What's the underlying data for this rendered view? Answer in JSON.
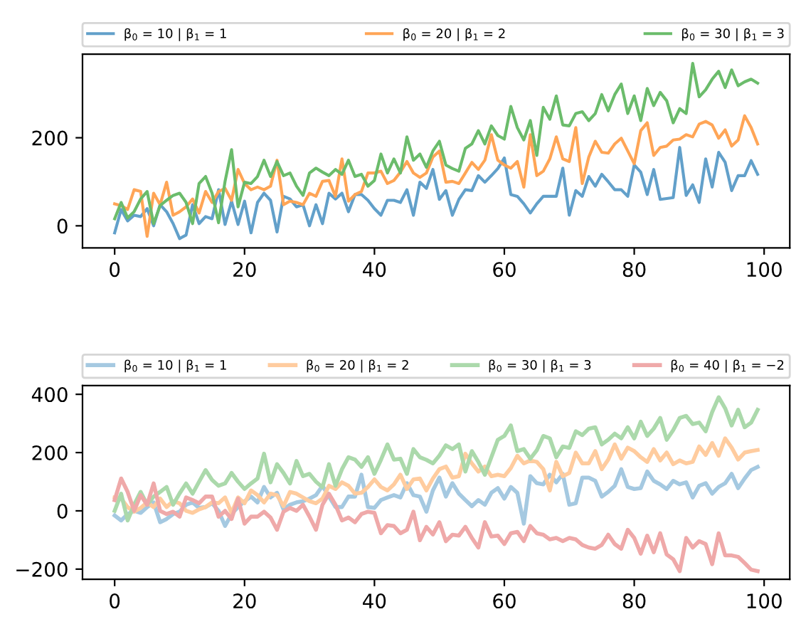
{
  "chart_data": [
    {
      "type": "line",
      "legend": "top",
      "xlim": [
        -4.95,
        103.95
      ],
      "xticks": [
        0,
        20,
        40,
        60,
        80,
        100
      ],
      "ylim": [
        -50,
        390
      ],
      "yticks": [
        0,
        200
      ],
      "grid": false,
      "x": [
        0,
        1,
        2,
        3,
        4,
        5,
        6,
        7,
        8,
        9,
        10,
        11,
        12,
        13,
        14,
        15,
        16,
        17,
        18,
        19,
        20,
        21,
        22,
        23,
        24,
        25,
        26,
        27,
        28,
        29,
        30,
        31,
        32,
        33,
        34,
        35,
        36,
        37,
        38,
        39,
        40,
        41,
        42,
        43,
        44,
        45,
        46,
        47,
        48,
        49,
        50,
        51,
        52,
        53,
        54,
        55,
        56,
        57,
        58,
        59,
        60,
        61,
        62,
        63,
        64,
        65,
        66,
        67,
        68,
        69,
        70,
        71,
        72,
        73,
        74,
        75,
        76,
        77,
        78,
        79,
        80,
        81,
        82,
        83,
        84,
        85,
        86,
        87,
        88,
        89,
        90,
        91,
        92,
        93,
        94,
        95,
        96,
        97,
        98,
        99
      ],
      "series": [
        {
          "name": "β$_{0}$ = 10 | β$_{1}$ = 1",
          "color": "#62a0ca",
          "values": [
            -16,
            37,
            11,
            24,
            21,
            39,
            0,
            48,
            32,
            5,
            -29,
            -21,
            48,
            5,
            21,
            16,
            82,
            3,
            56,
            3,
            56,
            -16,
            53,
            74,
            58,
            -14,
            67,
            61,
            43,
            48,
            0,
            48,
            5,
            74,
            61,
            74,
            32,
            71,
            71,
            58,
            39,
            24,
            58,
            58,
            53,
            82,
            24,
            99,
            85,
            128,
            60,
            80,
            24,
            60,
            82,
            80,
            114,
            99,
            114,
            130,
            154,
            71,
            67,
            50,
            29,
            50,
            67,
            67,
            67,
            131,
            24,
            80,
            67,
            112,
            90,
            117,
            100,
            82,
            82,
            67,
            138,
            122,
            71,
            128,
            60,
            62,
            64,
            178,
            69,
            93,
            53,
            152,
            88,
            167,
            144,
            80,
            114,
            114,
            148,
            117
          ]
        },
        {
          "name": "β$_{0}$ = 20 | β$_{1}$ = 2",
          "color": "#ffa556",
          "values": [
            50,
            46,
            37,
            82,
            78,
            -24,
            74,
            48,
            99,
            24,
            32,
            43,
            61,
            29,
            78,
            53,
            78,
            85,
            58,
            128,
            96,
            82,
            88,
            82,
            90,
            149,
            48,
            56,
            53,
            48,
            74,
            67,
            101,
            103,
            67,
            152,
            56,
            71,
            78,
            120,
            120,
            124,
            96,
            103,
            122,
            146,
            120,
            110,
            120,
            156,
            170,
            99,
            101,
            96,
            120,
            144,
            128,
            149,
            207,
            149,
            138,
            131,
            146,
            88,
            207,
            114,
            124,
            152,
            202,
            152,
            146,
            223,
            96,
            156,
            192,
            167,
            165,
            186,
            199,
            170,
            141,
            216,
            234,
            160,
            178,
            181,
            195,
            197,
            207,
            202,
            231,
            237,
            229,
            199,
            218,
            181,
            195,
            250,
            223,
            186
          ]
        },
        {
          "name": "β$_{0}$ = 30 | β$_{1}$ = 3",
          "color": "#6bbc6b",
          "values": [
            16,
            53,
            18,
            32,
            61,
            78,
            5,
            46,
            58,
            69,
            74,
            53,
            5,
            96,
            112,
            74,
            7,
            101,
            173,
            43,
            99,
            96,
            112,
            149,
            112,
            146,
            114,
            120,
            90,
            69,
            120,
            131,
            122,
            114,
            128,
            117,
            149,
            112,
            117,
            90,
            103,
            163,
            120,
            152,
            120,
            202,
            149,
            163,
            133,
            170,
            192,
            138,
            130,
            124,
            176,
            186,
            216,
            186,
            227,
            205,
            197,
            271,
            223,
            195,
            239,
            160,
            269,
            242,
            295,
            229,
            227,
            255,
            259,
            239,
            255,
            298,
            261,
            298,
            322,
            255,
            295,
            239,
            312,
            273,
            303,
            284,
            234,
            266,
            255,
            369,
            293,
            309,
            333,
            351,
            314,
            354,
            318,
            327,
            333,
            324
          ]
        }
      ]
    },
    {
      "type": "line",
      "legend": "top",
      "xlim": [
        -4.95,
        103.95
      ],
      "xticks": [
        0,
        20,
        40,
        60,
        80,
        100
      ],
      "ylim": [
        -235,
        430
      ],
      "yticks": [
        {
          "value": -200,
          "label": "−200"
        },
        0,
        200,
        400
      ],
      "grid": false,
      "x": [
        0,
        1,
        2,
        3,
        4,
        5,
        6,
        7,
        8,
        9,
        10,
        11,
        12,
        13,
        14,
        15,
        16,
        17,
        18,
        19,
        20,
        21,
        22,
        23,
        24,
        25,
        26,
        27,
        28,
        29,
        30,
        31,
        32,
        33,
        34,
        35,
        36,
        37,
        38,
        39,
        40,
        41,
        42,
        43,
        44,
        45,
        46,
        47,
        48,
        49,
        50,
        51,
        52,
        53,
        54,
        55,
        56,
        57,
        58,
        59,
        60,
        61,
        62,
        63,
        64,
        65,
        66,
        67,
        68,
        69,
        70,
        71,
        72,
        73,
        74,
        75,
        76,
        77,
        78,
        79,
        80,
        81,
        82,
        83,
        84,
        85,
        86,
        87,
        88,
        89,
        90,
        91,
        92,
        93,
        94,
        95,
        96,
        97,
        98,
        99
      ],
      "series": [
        {
          "name": "β$_{0}$ = 10 | β$_{1}$ = 1",
          "color": "#a5c9e1",
          "values": [
            -16,
            -33,
            -11,
            0,
            -7,
            13,
            29,
            -39,
            -28,
            -11,
            -3,
            21,
            29,
            10,
            13,
            26,
            0,
            -52,
            -11,
            13,
            33,
            49,
            29,
            82,
            46,
            62,
            5,
            21,
            29,
            33,
            42,
            54,
            86,
            49,
            13,
            13,
            49,
            49,
            124,
            13,
            10,
            37,
            46,
            54,
            46,
            95,
            54,
            49,
            -3,
            70,
            114,
            49,
            95,
            59,
            37,
            16,
            37,
            21,
            62,
            78,
            42,
            82,
            62,
            -44,
            119,
            95,
            91,
            124,
            98,
            127,
            21,
            26,
            114,
            114,
            103,
            49,
            65,
            86,
            143,
            82,
            75,
            78,
            135,
            103,
            91,
            75,
            103,
            91,
            98,
            46,
            86,
            95,
            59,
            82,
            95,
            127,
            78,
            111,
            140,
            151
          ]
        },
        {
          "name": "β$_{0}$ = 20 | β$_{1}$ = 2",
          "color": "#ffcc9f",
          "values": [
            46,
            42,
            13,
            -3,
            10,
            29,
            13,
            42,
            13,
            33,
            26,
            0,
            -7,
            5,
            13,
            29,
            26,
            46,
            -7,
            46,
            26,
            70,
            54,
            29,
            59,
            54,
            16,
            65,
            59,
            46,
            33,
            26,
            42,
            86,
            75,
            98,
            86,
            59,
            62,
            82,
            108,
            82,
            70,
            91,
            124,
            75,
            108,
            111,
            70,
            111,
            143,
            152,
            114,
            119,
            196,
            163,
            135,
            152,
            119,
            124,
            119,
            147,
            189,
            163,
            173,
            168,
            143,
            70,
            168,
            119,
            130,
            200,
            163,
            163,
            205,
            143,
            176,
            228,
            179,
            217,
            205,
            184,
            168,
            212,
            173,
            200,
            160,
            173,
            163,
            168,
            221,
            192,
            233,
            189,
            249,
            217,
            176,
            200,
            205,
            209
          ]
        },
        {
          "name": "β$_{0}$ = 30 | β$_{1}$ = 3",
          "color": "#abd9ab",
          "values": [
            0,
            59,
            -33,
            21,
            65,
            21,
            49,
            65,
            82,
            21,
            60,
            94,
            59,
            100,
            140,
            106,
            86,
            94,
            130,
            100,
            75,
            94,
            111,
            196,
            98,
            160,
            130,
            94,
            171,
            119,
            127,
            100,
            81,
            160,
            86,
            143,
            184,
            176,
            151,
            184,
            127,
            175,
            228,
            176,
            179,
            127,
            212,
            184,
            175,
            163,
            190,
            225,
            212,
            228,
            135,
            205,
            168,
            124,
            184,
            244,
            257,
            293,
            205,
            212,
            179,
            208,
            257,
            249,
            184,
            221,
            216,
            273,
            260,
            282,
            287,
            228,
            244,
            265,
            249,
            287,
            249,
            306,
            257,
            282,
            319,
            244,
            277,
            319,
            326,
            298,
            303,
            273,
            339,
            390,
            352,
            293,
            347,
            287,
            303,
            347
          ]
        },
        {
          "name": "β$_{0}$ = 40 | β$_{1}$ = −2",
          "color": "#efa9a9",
          "values": [
            37,
            111,
            65,
            0,
            54,
            21,
            94,
            0,
            -11,
            -3,
            -20,
            46,
            37,
            26,
            49,
            49,
            -20,
            0,
            -28,
            42,
            -44,
            -20,
            -20,
            -3,
            -23,
            -65,
            -3,
            10,
            0,
            21,
            -20,
            -65,
            21,
            59,
            21,
            -33,
            -23,
            -39,
            -11,
            -3,
            -7,
            -77,
            -49,
            -52,
            -77,
            -65,
            -3,
            -101,
            -55,
            -81,
            -39,
            -104,
            -82,
            -85,
            -55,
            -93,
            -126,
            -39,
            -88,
            -85,
            -114,
            -77,
            -72,
            -104,
            -52,
            -77,
            -82,
            -98,
            -93,
            -104,
            -93,
            -98,
            -117,
            -126,
            -130,
            -117,
            -82,
            -114,
            -130,
            -65,
            -93,
            -147,
            -85,
            -142,
            -77,
            -150,
            -166,
            -207,
            -93,
            -126,
            -104,
            -114,
            -183,
            -77,
            -153,
            -153,
            -158,
            -179,
            -202,
            -207
          ]
        }
      ]
    }
  ]
}
